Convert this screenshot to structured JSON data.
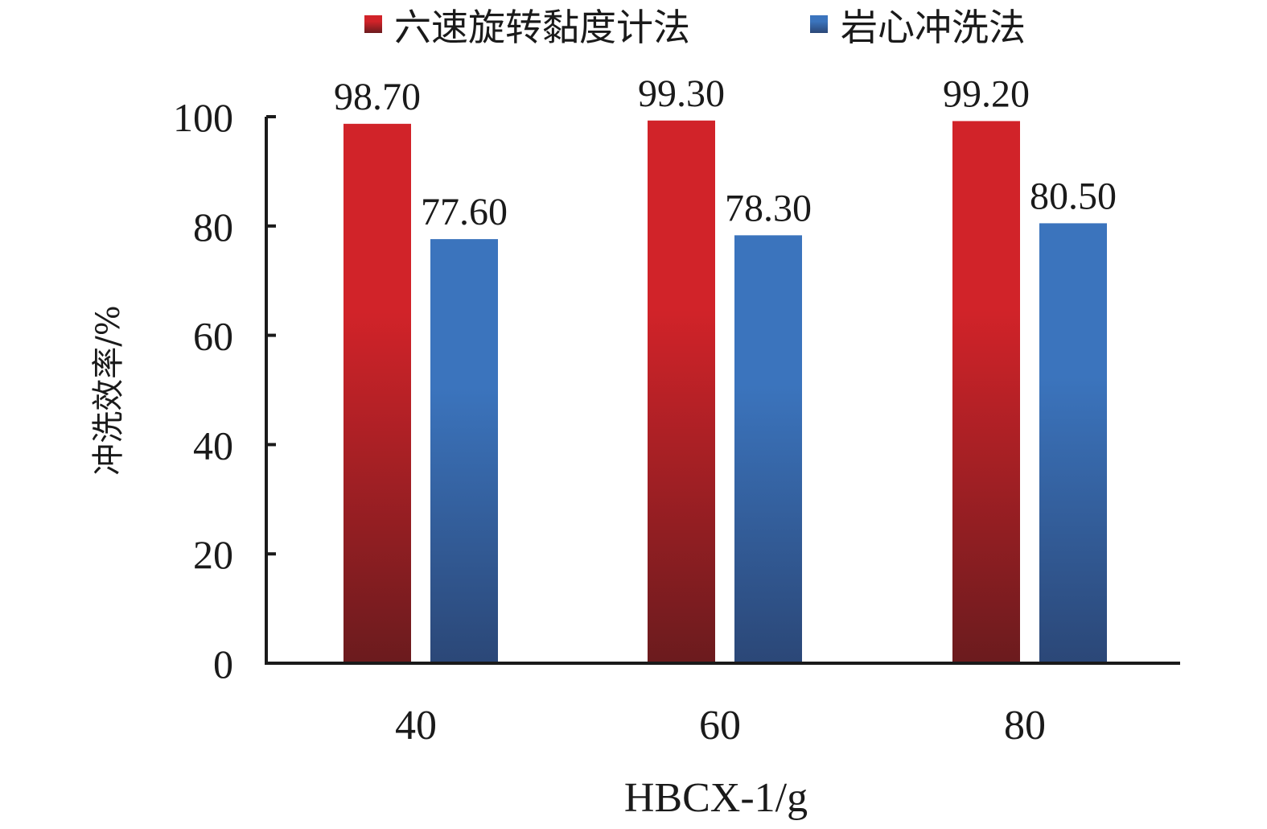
{
  "chart_data": {
    "type": "bar",
    "title": "",
    "xlabel": "HBCX-1/g",
    "ylabel": "冲洗效率/%",
    "categories": [
      "40",
      "60",
      "80"
    ],
    "series": [
      {
        "name": "六速旋转黏度计法",
        "values": [
          98.7,
          99.3,
          99.2
        ],
        "labels": [
          "98.70",
          "99.30",
          "99.20"
        ]
      },
      {
        "name": "岩心冲洗法",
        "values": [
          77.6,
          78.3,
          80.5
        ],
        "labels": [
          "77.60",
          "78.30",
          "80.50"
        ]
      }
    ],
    "ylim": [
      0,
      100
    ],
    "yticks": [
      0,
      20,
      40,
      60,
      80,
      100
    ],
    "ytick_labels": [
      "0",
      "20",
      "40",
      "60",
      "80",
      "100"
    ],
    "grid": false,
    "legend_position": "top",
    "colors": {
      "series1_top": "#d12329",
      "series1_bottom": "#6b1b1e",
      "series2_top": "#3b74bd",
      "series2_bottom": "#2b4777",
      "axis": "#1a1a1a",
      "text": "#1a1a1a"
    }
  }
}
